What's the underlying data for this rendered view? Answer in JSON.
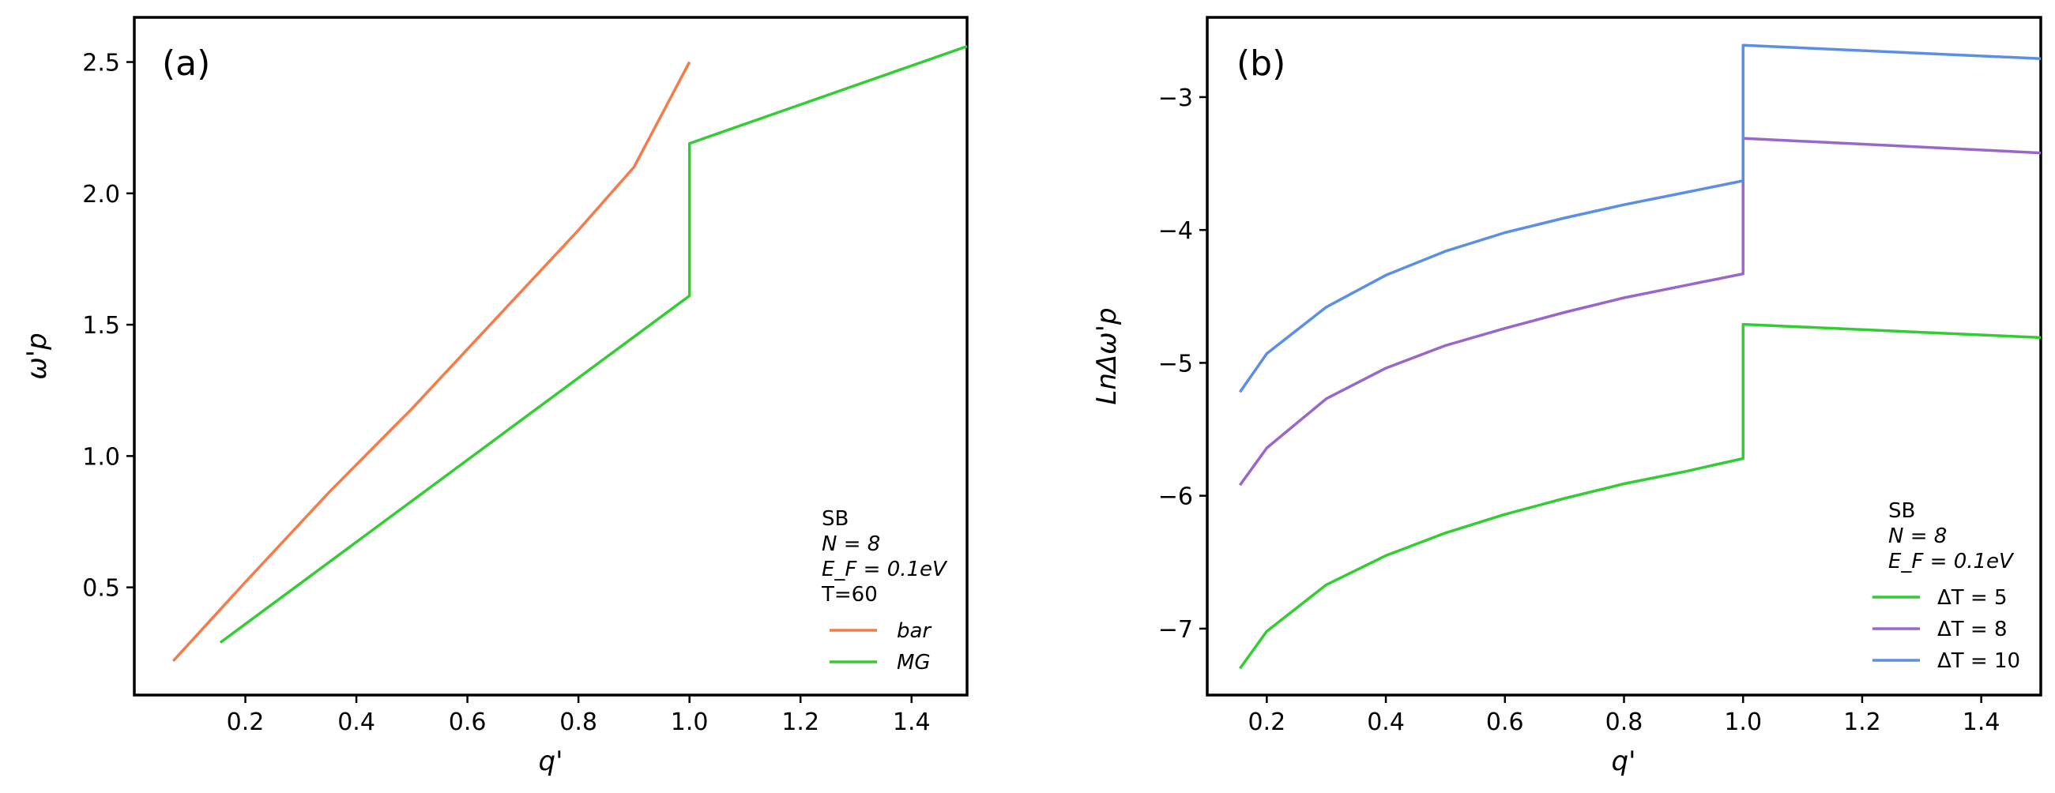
{
  "chart_data": [
    {
      "panel": "(a)",
      "type": "line",
      "xlabel": "q'",
      "ylabel": "ω'p",
      "xlim": [
        0.0,
        1.5
      ],
      "ylim": [
        0.09,
        2.67
      ],
      "xticks": [
        "0.2",
        "0.4",
        "0.6",
        "0.8",
        "1.0",
        "1.2",
        "1.4"
      ],
      "yticks": [
        "0.5",
        "1.0",
        "1.5",
        "2.0",
        "2.5"
      ],
      "legend": {
        "position": "lower right",
        "header": [
          "SB",
          "N = 8",
          "E_F = 0.1eV",
          "T=60"
        ]
      },
      "series": [
        {
          "name": "bar",
          "color": "#f47b4a",
          "x": [
            0.07,
            0.2,
            0.35,
            0.5,
            0.65,
            0.8,
            0.9,
            1.0
          ],
          "y": [
            0.22,
            0.52,
            0.86,
            1.18,
            1.52,
            1.86,
            2.1,
            2.5
          ]
        },
        {
          "name": "MG",
          "color": "#33cc33",
          "x": [
            0.155,
            1.0,
            1.0,
            1.5
          ],
          "y": [
            0.29,
            1.61,
            2.19,
            2.56
          ]
        }
      ]
    },
    {
      "panel": "(b)",
      "type": "line",
      "xlabel": "q'",
      "ylabel": "LnΔω'p",
      "xlim": [
        0.1,
        1.5
      ],
      "ylim": [
        -7.5,
        -2.4
      ],
      "xticks": [
        "0.2",
        "0.4",
        "0.6",
        "0.8",
        "1.0",
        "1.2",
        "1.4"
      ],
      "yticks": [
        "−3",
        "−4",
        "−5",
        "−6",
        "−7"
      ],
      "legend": {
        "position": "lower right",
        "header": [
          "SB",
          "N = 8",
          "E_F = 0.1eV"
        ]
      },
      "series": [
        {
          "name": "ΔT = 5",
          "color": "#33cc33",
          "x": [
            0.155,
            0.2,
            0.3,
            0.4,
            0.5,
            0.6,
            0.7,
            0.8,
            0.9,
            1.0,
            1.0,
            1.5
          ],
          "y": [
            -7.3,
            -7.02,
            -6.67,
            -6.45,
            -6.28,
            -6.14,
            -6.02,
            -5.91,
            -5.82,
            -5.72,
            -4.71,
            -4.81
          ]
        },
        {
          "name": "ΔT = 8",
          "color": "#9966cc",
          "x": [
            0.155,
            0.2,
            0.3,
            0.4,
            0.5,
            0.6,
            0.7,
            0.8,
            0.9,
            1.0,
            1.0,
            1.5
          ],
          "y": [
            -5.92,
            -5.64,
            -5.27,
            -5.04,
            -4.87,
            -4.74,
            -4.62,
            -4.51,
            -4.42,
            -4.33,
            -3.31,
            -3.42
          ]
        },
        {
          "name": "ΔT = 10",
          "color": "#5b8fe6",
          "x": [
            0.155,
            0.2,
            0.3,
            0.4,
            0.5,
            0.6,
            0.7,
            0.8,
            0.9,
            1.0,
            1.0,
            1.5
          ],
          "y": [
            -5.22,
            -4.93,
            -4.58,
            -4.34,
            -4.16,
            -4.02,
            -3.91,
            -3.81,
            -3.72,
            -3.63,
            -2.61,
            -2.71
          ]
        }
      ]
    }
  ]
}
